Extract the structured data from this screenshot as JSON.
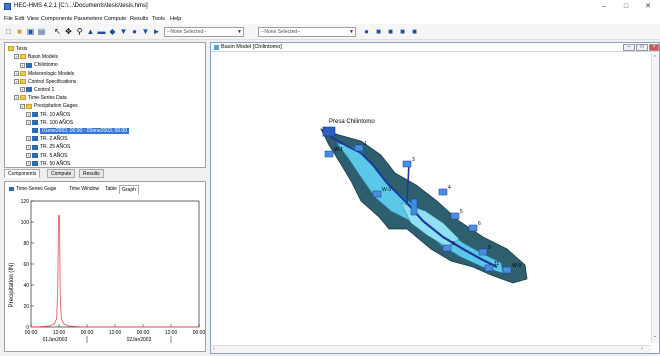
{
  "window": {
    "title": "HEC-HMS 4.2.1 [C:\\...\\Documents\\tesis\\tesis.hms]",
    "minimize": "–",
    "maximize": "□",
    "close": "✕"
  },
  "menu": [
    "File",
    "Edit",
    "View",
    "Components",
    "Parameters",
    "Compute",
    "Results",
    "Tools",
    "Help"
  ],
  "toolbar": {
    "combo1": "--None Selected--",
    "combo2": "--None Selected--",
    "combo3": "--None Selected--"
  },
  "tree": {
    "items": [
      {
        "label": "Tesis",
        "kind": "folder",
        "indent": 0
      },
      {
        "label": "Basin Models",
        "kind": "folder",
        "indent": 1
      },
      {
        "label": "Chilintomo",
        "kind": "gage",
        "indent": 2
      },
      {
        "label": "Meteorologic Models",
        "kind": "folder",
        "indent": 1
      },
      {
        "label": "Control Specifications",
        "kind": "folder",
        "indent": 1
      },
      {
        "label": "Control 1",
        "kind": "gage",
        "indent": 2
      },
      {
        "label": "Time-Series Data",
        "kind": "folder",
        "indent": 1
      },
      {
        "label": "Precipitation Gages",
        "kind": "folder",
        "indent": 2
      },
      {
        "label": "TR. 10 AÑOS",
        "kind": "gage",
        "indent": 3
      },
      {
        "label": "TR. 100 AÑOS",
        "kind": "gage",
        "indent": 3
      },
      {
        "label": "01ene2003, 00:00 - 03ene2003, 00:00",
        "kind": "selected",
        "indent": 4
      },
      {
        "label": "TR. 2 AÑOS",
        "kind": "gage",
        "indent": 3
      },
      {
        "label": "TR. 25 AÑOS",
        "kind": "gage",
        "indent": 3
      },
      {
        "label": "TR. 5 AÑOS",
        "kind": "gage",
        "indent": 3
      },
      {
        "label": "TR. 50 AÑOS",
        "kind": "gage",
        "indent": 3
      }
    ]
  },
  "component_tabs": [
    "Components",
    "Compute",
    "Results"
  ],
  "gage_tabs": [
    "Time-Series Gage",
    "Time Window",
    "Table",
    "Graph"
  ],
  "graph": {
    "ylabel": "Precipitation (IN)",
    "yticks": [
      "120",
      "100",
      "80",
      "60",
      "40",
      "20",
      "0"
    ],
    "xticks": [
      "00:00",
      "12:00",
      "00:00",
      "12:00",
      "00:00",
      "12:00",
      "00:00"
    ],
    "xdates": [
      "01Jan2003",
      "02Jan2003"
    ]
  },
  "basin": {
    "title": "Basin Model [Chilintomo]",
    "reservoir_label": "Presa Chilintomo",
    "node_labels": [
      "1",
      "3",
      "4",
      "5",
      "6",
      "8",
      "9",
      "11",
      "W-1",
      "W-3",
      "W-9"
    ]
  },
  "colors": {
    "water": "#5bc8e8",
    "basin_dark": "#2e5f6f",
    "river": "#1a3a9c",
    "graph_line": "#e05050"
  },
  "icons": {
    "app": "hec-hms-icon",
    "folder": "folder-icon",
    "gage": "gage-icon"
  }
}
